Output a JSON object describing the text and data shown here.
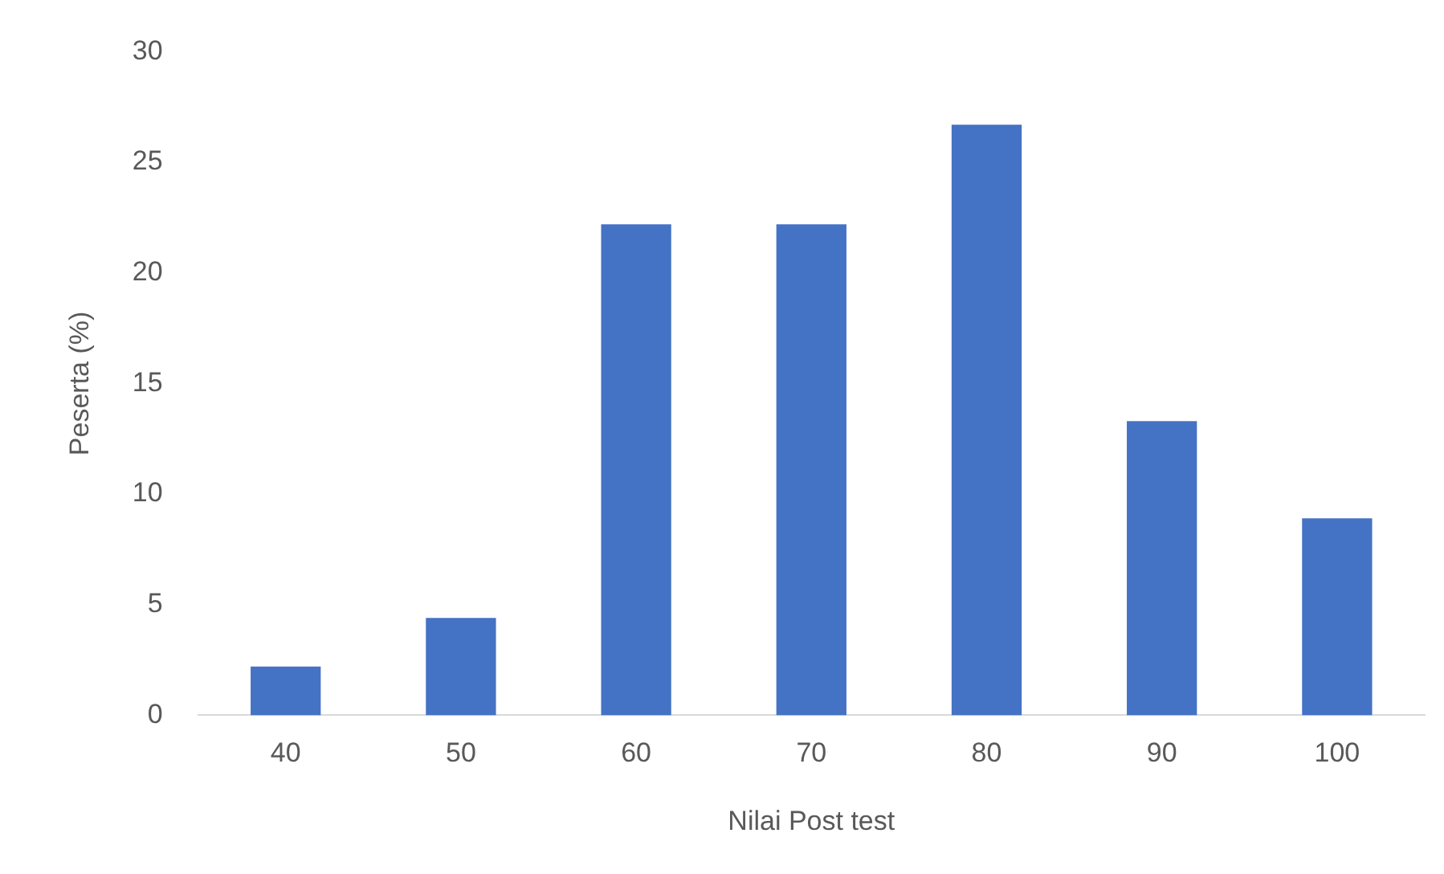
{
  "chart_data": {
    "type": "bar",
    "xlabel": "Nilai Post test",
    "ylabel": "Peserta (%)",
    "categories": [
      "40",
      "50",
      "60",
      "70",
      "80",
      "90",
      "100"
    ],
    "values": [
      2.2,
      4.4,
      22.2,
      22.2,
      26.7,
      13.3,
      8.9
    ],
    "color": "#4472c4",
    "ylim": [
      0,
      30
    ],
    "yticks": [
      0,
      5,
      10,
      15,
      20,
      25,
      30
    ],
    "grid": false,
    "legend": false
  }
}
